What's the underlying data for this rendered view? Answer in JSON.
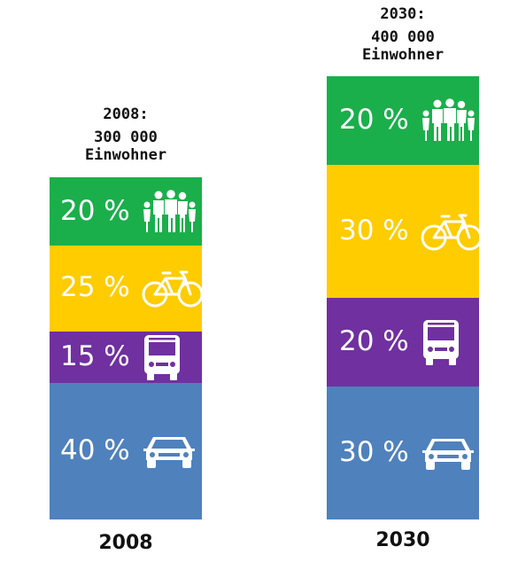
{
  "chart_data": {
    "type": "stacked-bar",
    "title": "",
    "xlabel": "",
    "ylabel": "",
    "ylim": [
      0,
      100
    ],
    "unit": "%",
    "categories": [
      "2008",
      "2030"
    ],
    "columns": [
      {
        "category": "2008",
        "header_year": "2008:",
        "header_pop_1": "300 000",
        "header_pop_2": "Einwohner",
        "segments": [
          {
            "mode": "people",
            "icon": "family-icon",
            "value": 20,
            "label": "20 %",
            "color": "#1AAF4B"
          },
          {
            "mode": "bicycle",
            "icon": "bicycle-icon",
            "value": 25,
            "label": "25 %",
            "color": "#FFCC00"
          },
          {
            "mode": "bus",
            "icon": "bus-icon",
            "value": 15,
            "label": "15 %",
            "color": "#7030A0"
          },
          {
            "mode": "car",
            "icon": "car-icon",
            "value": 40,
            "label": "40 %",
            "color": "#4F81BD"
          }
        ]
      },
      {
        "category": "2030",
        "header_year": "2030:",
        "header_pop_1": "400 000",
        "header_pop_2": "Einwohner",
        "segments": [
          {
            "mode": "people",
            "icon": "family-icon",
            "value": 20,
            "label": "20 %",
            "color": "#1AAF4B"
          },
          {
            "mode": "bicycle",
            "icon": "bicycle-icon",
            "value": 30,
            "label": "30 %",
            "color": "#FFCC00"
          },
          {
            "mode": "bus",
            "icon": "bus-icon",
            "value": 20,
            "label": "20 %",
            "color": "#7030A0"
          },
          {
            "mode": "car",
            "icon": "car-icon",
            "value": 30,
            "label": "30 %",
            "color": "#4F81BD"
          }
        ]
      }
    ]
  }
}
